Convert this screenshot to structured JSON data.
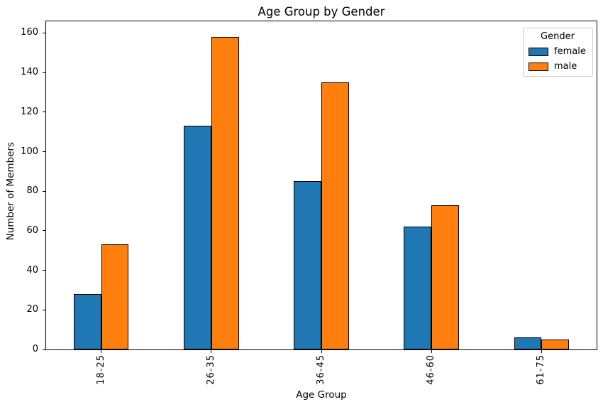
{
  "chart_data": {
    "type": "bar",
    "title": "Age Group by Gender",
    "xlabel": "Age Group",
    "ylabel": "Number of Members",
    "categories": [
      "18-25",
      "26-35",
      "36-45",
      "46-60",
      "61-75"
    ],
    "series": [
      {
        "name": "female",
        "color": "#1f77b4",
        "values": [
          28,
          113,
          85,
          62,
          6
        ]
      },
      {
        "name": "male",
        "color": "#ff7f0e",
        "values": [
          53,
          158,
          135,
          73,
          5
        ]
      }
    ],
    "ylim": [
      0,
      165.9
    ],
    "yticks": [
      0,
      20,
      40,
      60,
      80,
      100,
      120,
      140,
      160
    ],
    "grid": false,
    "bar_edge_color": "#000000",
    "background_color": "#ffffff",
    "legend": {
      "title": "Gender",
      "position": "upper right",
      "border_color": "#cccccc"
    }
  }
}
